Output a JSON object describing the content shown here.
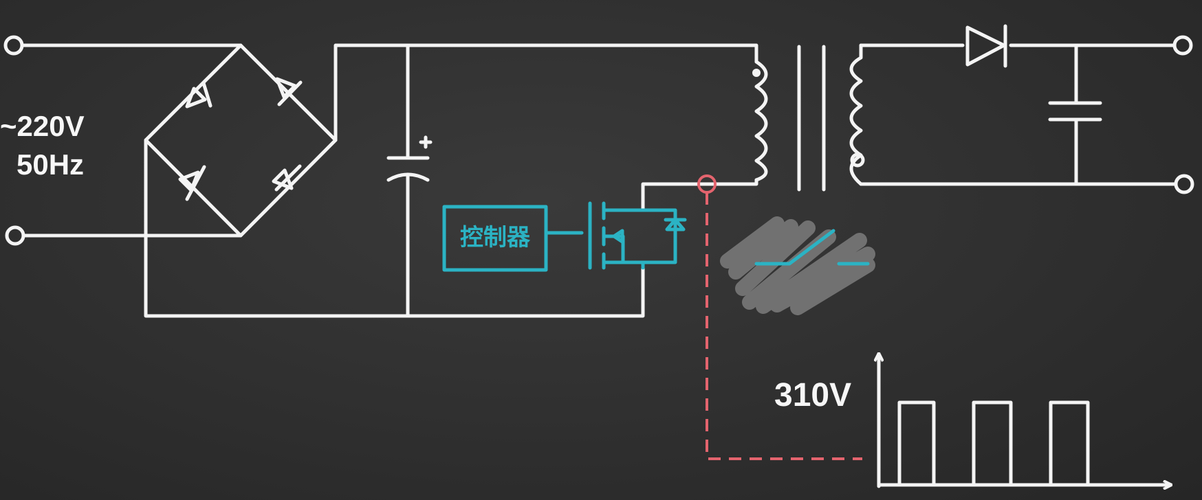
{
  "input": {
    "voltage": "~220V",
    "frequency": "50Hz"
  },
  "controller": {
    "label": "控制器"
  },
  "waveform": {
    "peak_label": "310V"
  },
  "colors": {
    "board": "#2e2e2e",
    "chalk": "#f4f4f4",
    "accent": "#2bb3c4",
    "probe": "#e4646e",
    "switch_smudge": "#8c8c8c"
  }
}
